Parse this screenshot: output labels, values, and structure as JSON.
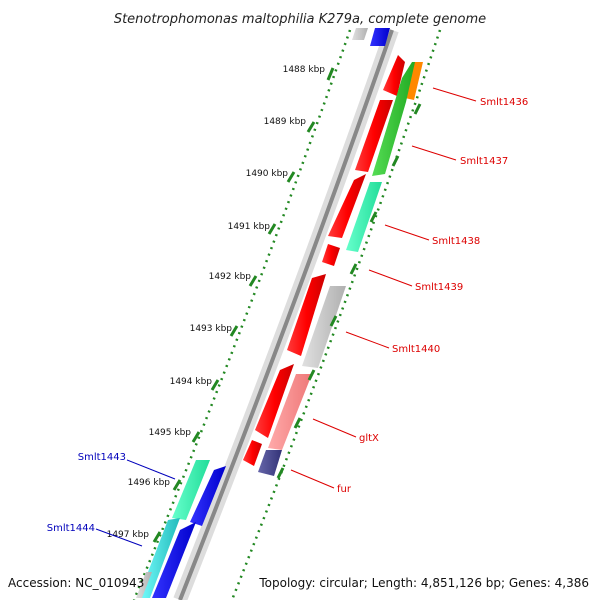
{
  "title": "Stenotrophomonas maltophilia K279a, complete genome",
  "accession": "Accession: NC_010943",
  "summary": "Topology: circular; Length: 4,851,126 bp; Genes: 4,386",
  "ticks": [
    "1488 kbp",
    "1489 kbp",
    "1490 kbp",
    "1491 kbp",
    "1492 kbp",
    "1493 kbp",
    "1494 kbp",
    "1495 kbp",
    "1496 kbp",
    "1497 kbp"
  ],
  "genes_right": [
    {
      "name": "Smlt1436",
      "color": "#dd0000"
    },
    {
      "name": "Smlt1437",
      "color": "#dd0000"
    },
    {
      "name": "Smlt1438",
      "color": "#dd0000"
    },
    {
      "name": "Smlt1439",
      "color": "#dd0000"
    },
    {
      "name": "Smlt1440",
      "color": "#dd0000"
    },
    {
      "name": "gltX",
      "color": "#dd0000"
    },
    {
      "name": "fur",
      "color": "#dd0000"
    }
  ],
  "genes_left": [
    {
      "name": "Smlt1443",
      "color": "#0000bb"
    },
    {
      "name": "Smlt1444",
      "color": "#0000bb"
    }
  ],
  "colors": {
    "backbone": "#888888",
    "forward_cds": "#ff0000",
    "reverse_cds": "#0000ff",
    "tick_dots": "#228822"
  }
}
